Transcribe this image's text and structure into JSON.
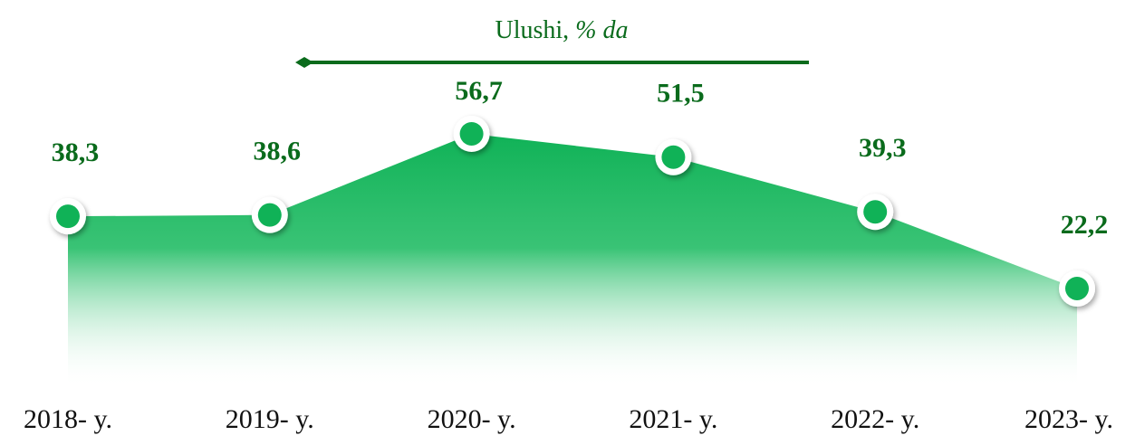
{
  "chart_data": {
    "type": "area",
    "title": {
      "text": "Ulushi,",
      "unit": "% da"
    },
    "categories": [
      "2018- y.",
      "2019- y.",
      "2020- y.",
      "2021- y.",
      "2022- y.",
      "2023- y."
    ],
    "values": [
      38.3,
      38.6,
      56.7,
      51.5,
      39.3,
      22.2
    ],
    "value_labels": [
      "38,3",
      "38,6",
      "56,7",
      "51,5",
      "39,3",
      "22,2"
    ],
    "color": "#10b257",
    "label_color": "#0a6b1c",
    "ylim": [
      0,
      60
    ]
  }
}
